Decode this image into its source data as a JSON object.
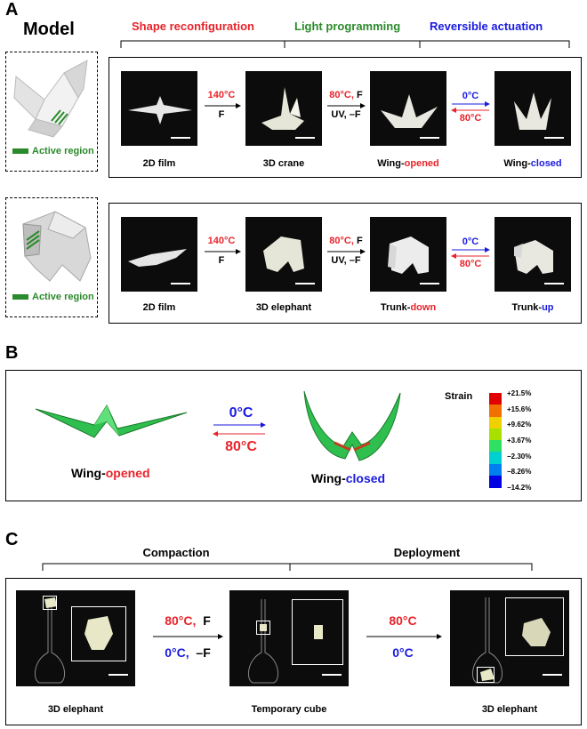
{
  "panel_a": {
    "letter": "A",
    "model_title": "Model",
    "headers": {
      "shape": "Shape reconfiguration",
      "light": "Light programming",
      "reversible": "Reversible actuation"
    },
    "active_region": "Active region",
    "crane_row": {
      "captions": [
        "2D film",
        "3D crane",
        "Wing-",
        "Wing-"
      ],
      "caption_suffix_3": "opened",
      "caption_suffix_4": "closed"
    },
    "elephant_row": {
      "captions": [
        "2D film",
        "3D elephant",
        "Trunk-",
        "Trunk-"
      ],
      "caption_suffix_3": "down",
      "caption_suffix_4": "up"
    },
    "conditions": {
      "t140": "140°C",
      "f": "F",
      "t80": "80°C,",
      "f2": "F",
      "uv": "UV, –F",
      "t0": "0°C",
      "t80b": "80°C"
    }
  },
  "panel_b": {
    "letter": "B",
    "t0": "0°C",
    "t80": "80°C",
    "left_label": "Wing-",
    "left_suffix": "opened",
    "right_label": "Wing-",
    "right_suffix": "closed",
    "strain_title": "Strain",
    "strain_ticks": [
      "+21.5%",
      "+15.6%",
      "+9.62%",
      "+3.67%",
      "−2.30%",
      "−8.26%",
      "−14.2%"
    ],
    "strain_colors": [
      "#e00000",
      "#f07000",
      "#f0d000",
      "#a8e000",
      "#30e060",
      "#00d0d0",
      "#0080f0",
      "#0000e0"
    ]
  },
  "panel_c": {
    "letter": "C",
    "compaction": "Compaction",
    "deployment": "Deployment",
    "captions": [
      "3D elephant",
      "Temporary cube",
      "3D elephant"
    ],
    "cond1_top": "80°C,",
    "cond1_top_f": "F",
    "cond1_bottom": "0°C,",
    "cond1_bottom_f": "–F",
    "cond2_top": "80°C",
    "cond2_bottom": "0°C"
  }
}
